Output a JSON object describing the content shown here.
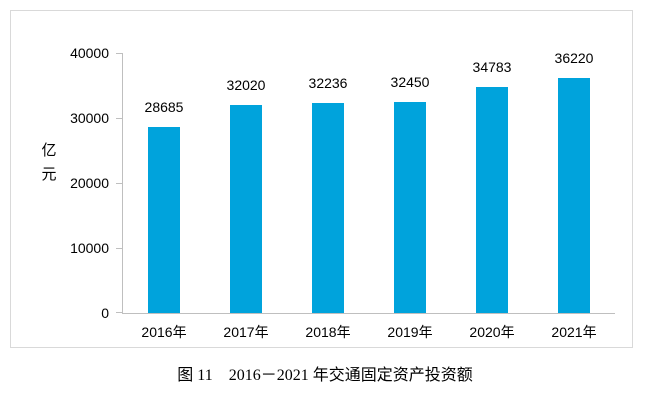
{
  "figure": {
    "caption": "图 11　2016－2021 年交通固定资产投资额"
  },
  "chart_data": {
    "type": "bar",
    "title": "",
    "categories": [
      "2016年",
      "2017年",
      "2018年",
      "2019年",
      "2020年",
      "2021年"
    ],
    "values": [
      28685,
      32020,
      32236,
      32450,
      34783,
      36220
    ],
    "xlabel": "",
    "ylabel": "亿元",
    "ylim": [
      0,
      40000
    ],
    "ytick_step": 10000,
    "ytick_labels": [
      "0",
      "10000",
      "20000",
      "30000",
      "40000"
    ],
    "data_labels": [
      "28685",
      "32020",
      "32236",
      "32450",
      "34783",
      "36220"
    ],
    "grid": false,
    "legend": false,
    "bar_color": "#00a3dc",
    "axis_color": "#bfbfbf",
    "frame_color": "#d9d9d9",
    "label_color": "#000000"
  }
}
